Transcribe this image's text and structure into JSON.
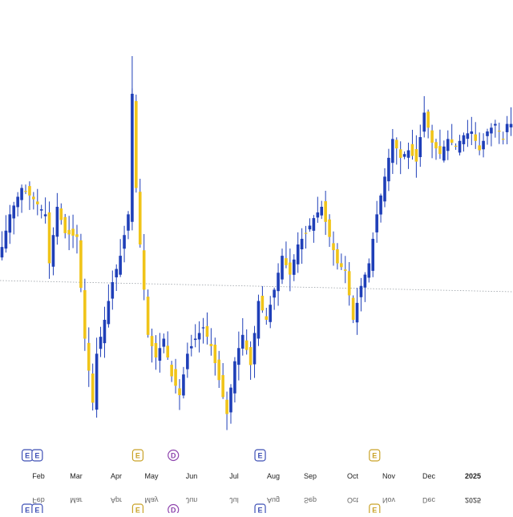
{
  "chart_data": {
    "type": "candlestick",
    "title": "",
    "xlabel": "",
    "ylabel": "",
    "grid": false,
    "legend": "none",
    "colors": {
      "up": "#1f3fb8",
      "down": "#f0c419",
      "wick": "#1f3fb8",
      "reference_line": "#9aa0a6",
      "event_e": "#3d4fb5",
      "event_d": "#8e44ad",
      "event_e_alt": "#c9a227"
    },
    "ylim": [
      0,
      100
    ],
    "reference_level": 40,
    "x_labels": [
      "Feb",
      "Mar",
      "Apr",
      "May",
      "Jun",
      "Jul",
      "Aug",
      "Sep",
      "Oct",
      "Nov",
      "Dec",
      "2025"
    ],
    "x_labels_mirror": [
      "Feb",
      "Mar",
      "Apr",
      "May",
      "Jun",
      "Jul",
      "Aug",
      "Sep",
      "Oct",
      "Nov",
      "Dec",
      "2025"
    ],
    "close_path": [
      [
        0,
        45
      ],
      [
        3,
        58
      ],
      [
        6,
        65
      ],
      [
        9,
        62
      ],
      [
        12,
        58
      ],
      [
        13,
        45
      ],
      [
        15,
        60
      ],
      [
        17,
        53
      ],
      [
        20,
        52
      ],
      [
        22,
        25
      ],
      [
        24,
        8
      ],
      [
        25,
        21
      ],
      [
        27,
        30
      ],
      [
        29,
        40
      ],
      [
        31,
        47
      ],
      [
        33,
        58
      ],
      [
        34,
        90
      ],
      [
        35,
        65
      ],
      [
        36,
        50
      ],
      [
        38,
        26
      ],
      [
        40,
        20
      ],
      [
        42,
        25
      ],
      [
        44,
        15
      ],
      [
        46,
        10
      ],
      [
        48,
        21
      ],
      [
        50,
        25
      ],
      [
        52,
        28
      ],
      [
        54,
        23
      ],
      [
        56,
        14
      ],
      [
        58,
        5
      ],
      [
        60,
        19
      ],
      [
        62,
        26
      ],
      [
        64,
        18
      ],
      [
        66,
        35
      ],
      [
        68,
        30
      ],
      [
        70,
        38
      ],
      [
        72,
        47
      ],
      [
        74,
        42
      ],
      [
        76,
        50
      ],
      [
        78,
        53
      ],
      [
        80,
        57
      ],
      [
        82,
        60
      ],
      [
        84,
        52
      ],
      [
        86,
        45
      ],
      [
        88,
        43
      ],
      [
        90,
        30
      ],
      [
        92,
        39
      ],
      [
        94,
        45
      ],
      [
        96,
        58
      ],
      [
        98,
        68
      ],
      [
        100,
        78
      ],
      [
        102,
        73
      ],
      [
        104,
        75
      ],
      [
        106,
        72
      ],
      [
        108,
        85
      ],
      [
        110,
        77
      ],
      [
        112,
        74
      ],
      [
        114,
        78
      ],
      [
        116,
        76
      ],
      [
        118,
        79
      ],
      [
        120,
        80
      ],
      [
        122,
        75
      ],
      [
        124,
        80
      ],
      [
        126,
        82
      ],
      [
        128,
        78
      ],
      [
        129,
        82
      ]
    ],
    "event_markers": [
      {
        "label": "E",
        "kind": "event_e",
        "x": 5
      },
      {
        "label": "E",
        "kind": "event_e",
        "x": 7.5
      },
      {
        "label": "E",
        "kind": "event_e_alt",
        "x": 33
      },
      {
        "label": "D",
        "kind": "event_d",
        "x": 42
      },
      {
        "label": "E",
        "kind": "event_e",
        "x": 64
      },
      {
        "label": "E",
        "kind": "event_e_alt",
        "x": 93
      }
    ]
  }
}
